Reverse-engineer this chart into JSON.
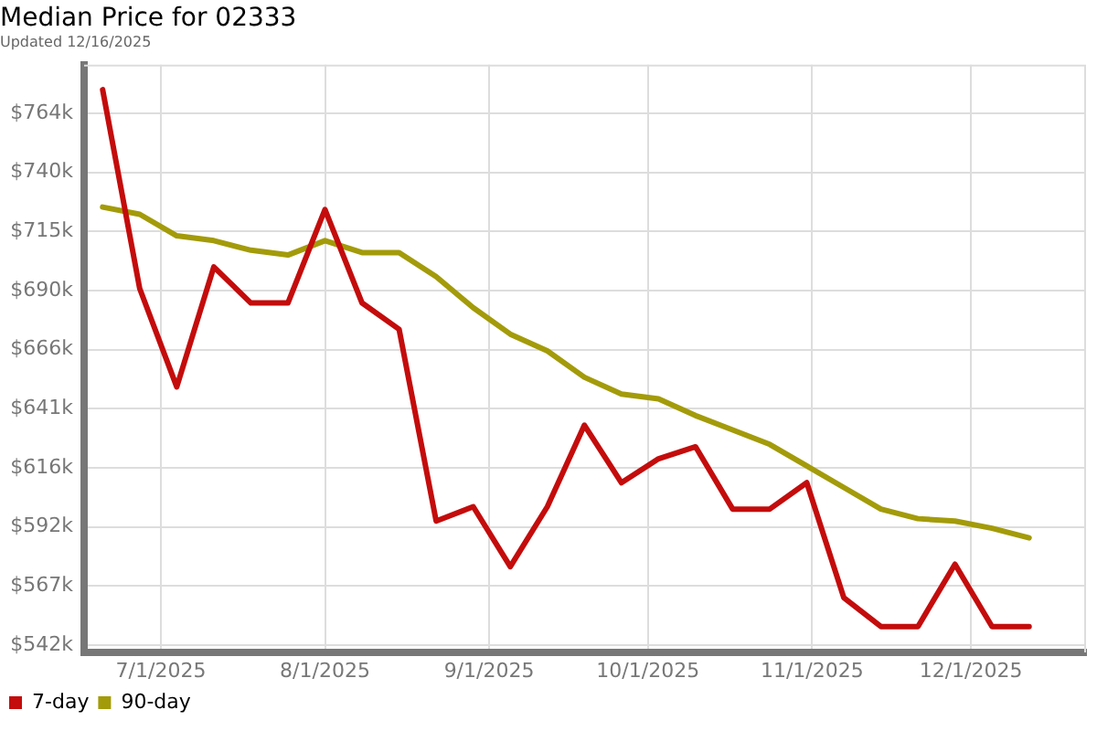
{
  "chart_data": {
    "type": "line",
    "title": "Median Price for 02333",
    "subtitle": "Updated 12/16/2025",
    "x": [
      "2025-06-20",
      "2025-06-27",
      "2025-07-04",
      "2025-07-11",
      "2025-07-18",
      "2025-07-25",
      "2025-08-01",
      "2025-08-08",
      "2025-08-15",
      "2025-08-22",
      "2025-08-29",
      "2025-09-05",
      "2025-09-12",
      "2025-09-19",
      "2025-09-26",
      "2025-10-03",
      "2025-10-10",
      "2025-10-17",
      "2025-10-24",
      "2025-10-31",
      "2025-11-07",
      "2025-11-14",
      "2025-11-21",
      "2025-11-28",
      "2025-12-05",
      "2025-12-12"
    ],
    "series": [
      {
        "name": "7-day",
        "color": "#c40c0c",
        "values": [
          774,
          691,
          650,
          700,
          685,
          685,
          724,
          685,
          674,
          594,
          600,
          575,
          600,
          634,
          610,
          620,
          625,
          599,
          599,
          610,
          562,
          550,
          550,
          576,
          550,
          550
        ]
      },
      {
        "name": "90-day",
        "color": "#a39b09",
        "values": [
          725,
          722,
          713,
          711,
          707,
          705,
          711,
          706,
          706,
          696,
          683,
          672,
          665,
          654,
          647,
          645,
          638,
          632,
          626,
          617,
          608,
          599,
          595,
          594,
          591,
          587
        ]
      }
    ],
    "xlim": [
      "2025-06-16T12:00",
      "2025-12-22T18:00"
    ],
    "xticks": [
      {
        "value": "2025-07-01",
        "label": "7/1/2025"
      },
      {
        "value": "2025-08-01",
        "label": "8/1/2025"
      },
      {
        "value": "2025-09-01",
        "label": "9/1/2025"
      },
      {
        "value": "2025-10-01",
        "label": "10/1/2025"
      },
      {
        "value": "2025-11-01",
        "label": "11/1/2025"
      },
      {
        "value": "2025-12-01",
        "label": "12/1/2025"
      }
    ],
    "ylim": [
      539.2,
      784.4
    ],
    "yticks": [
      {
        "value": 542.3,
        "label": "$542k"
      },
      {
        "value": 566.95,
        "label": "$567k"
      },
      {
        "value": 591.6,
        "label": "$592k"
      },
      {
        "value": 616.25,
        "label": "$616k"
      },
      {
        "value": 640.9,
        "label": "$641k"
      },
      {
        "value": 665.55,
        "label": "$666k"
      },
      {
        "value": 690.2,
        "label": "$690k"
      },
      {
        "value": 714.85,
        "label": "$715k"
      },
      {
        "value": 739.5,
        "label": "$740k"
      },
      {
        "value": 764.15,
        "label": "$764k"
      }
    ],
    "grid": true,
    "legend": "bottom left",
    "marker": "none"
  }
}
